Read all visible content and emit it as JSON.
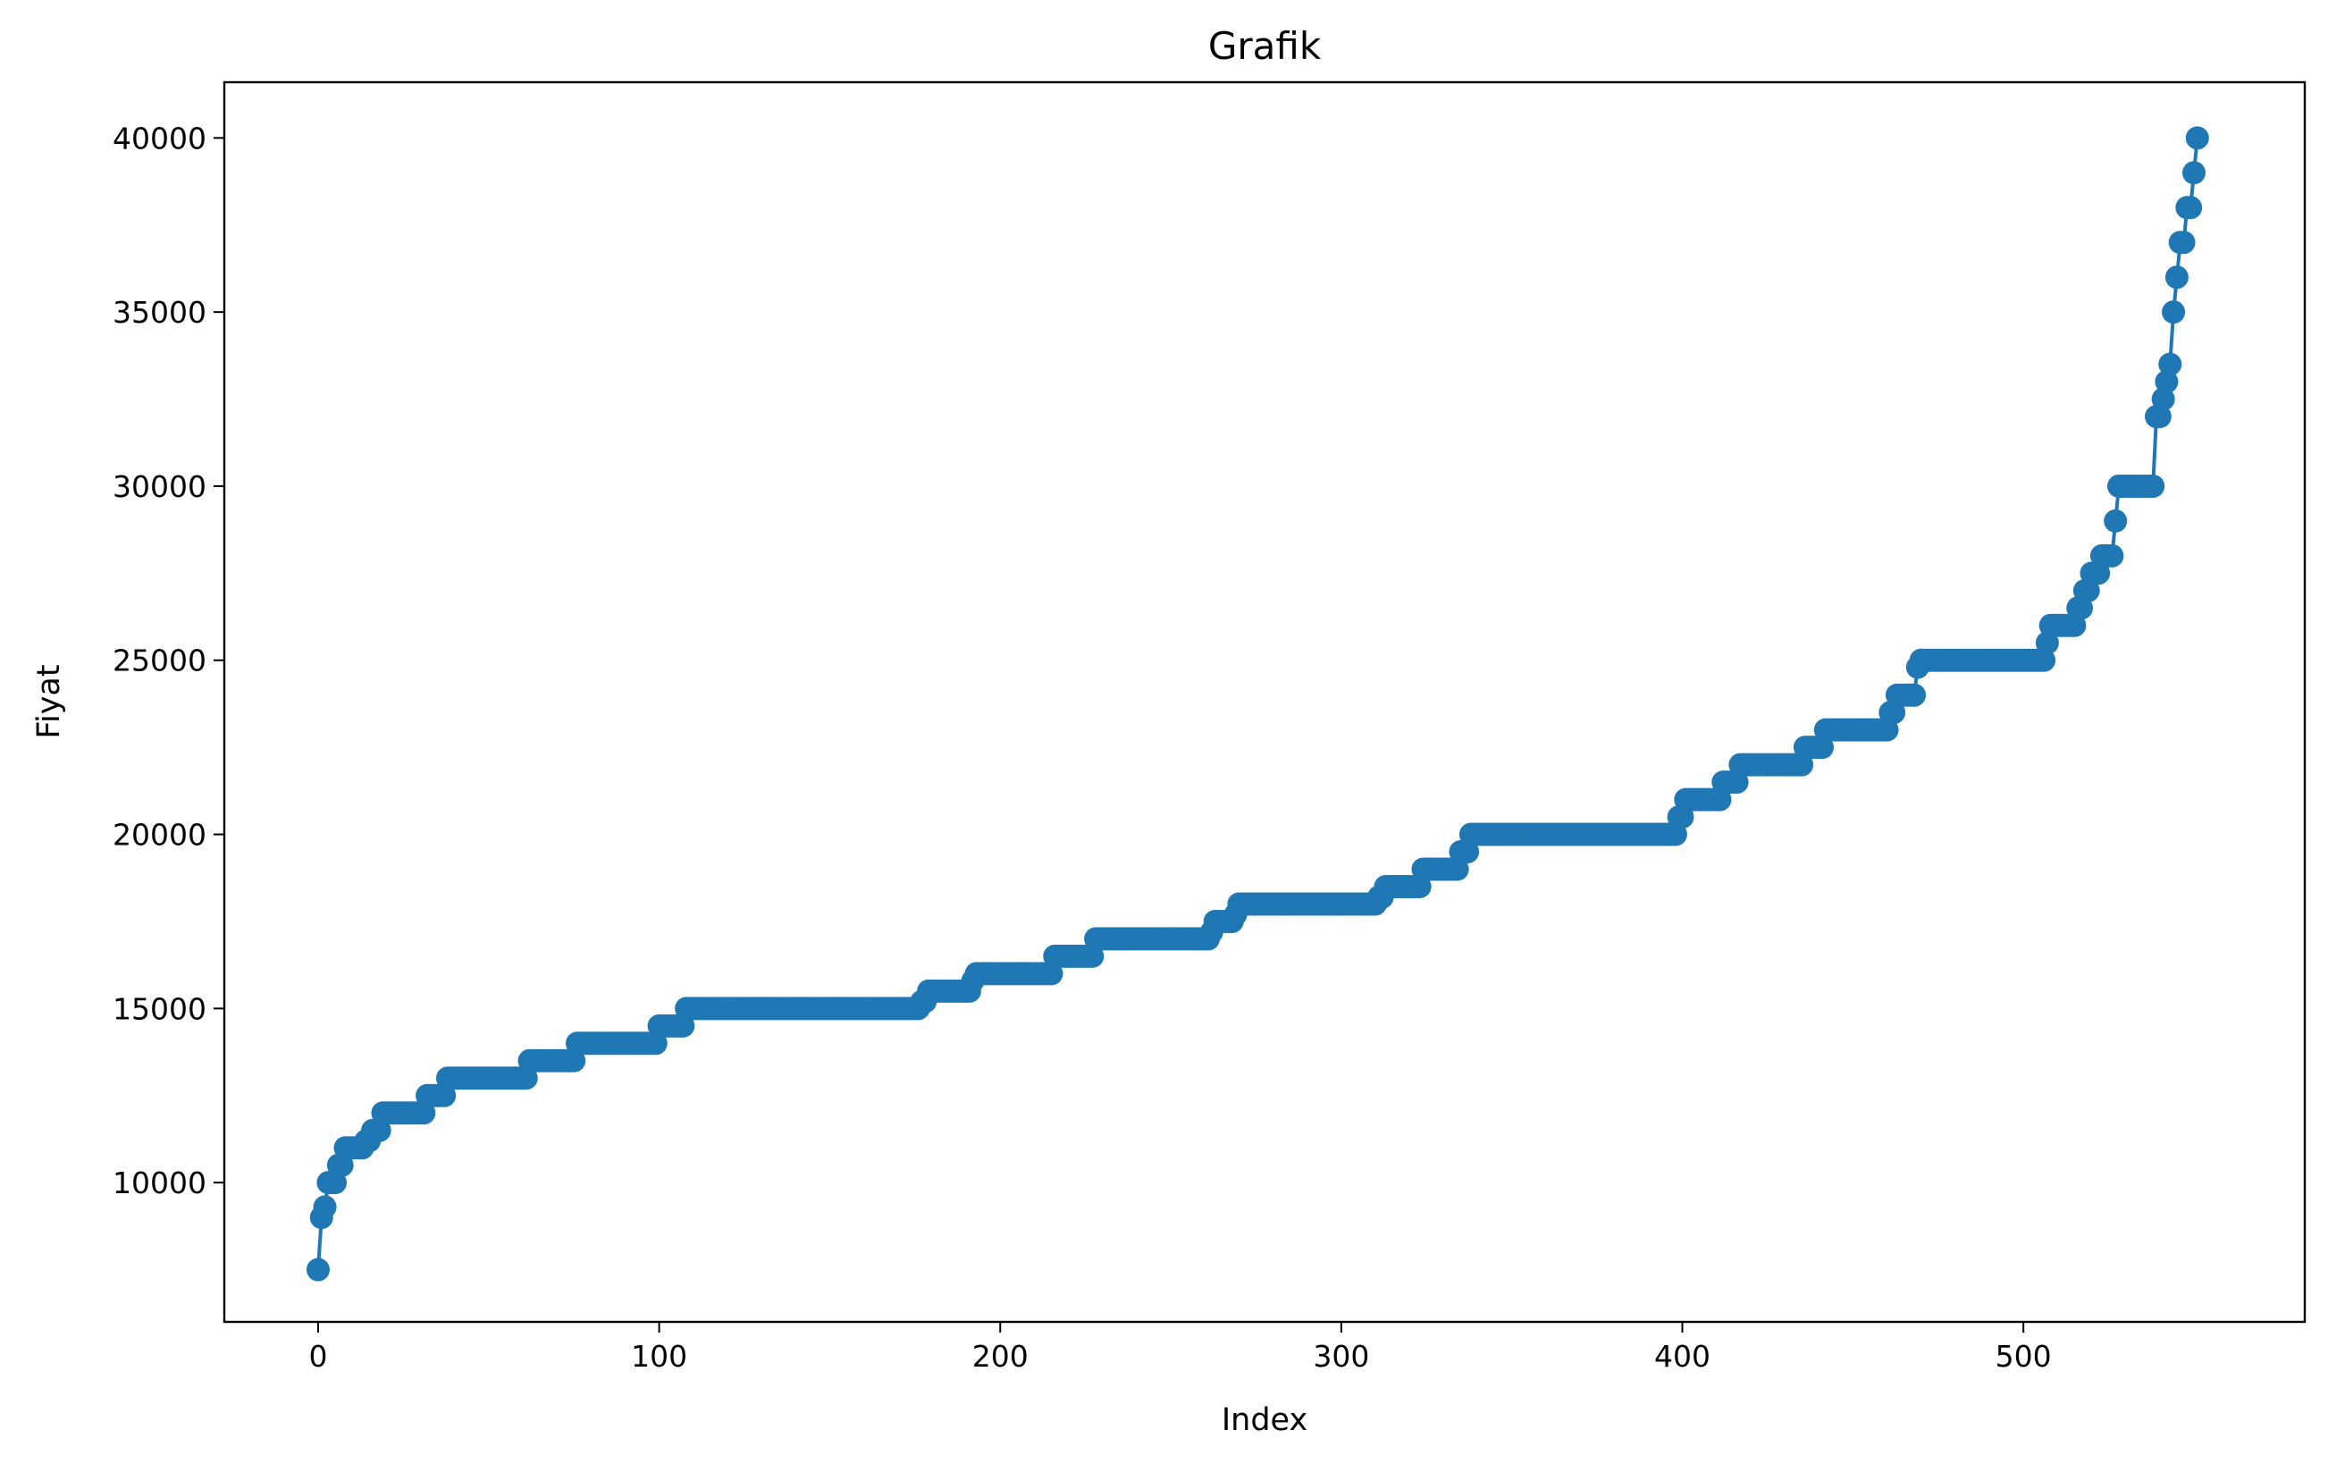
{
  "chart_data": {
    "type": "line",
    "title": "Grafik",
    "xlabel": "Index",
    "ylabel": "Fiyat",
    "xlim": [
      -27.5,
      582.5
    ],
    "ylim": [
      6000,
      41600
    ],
    "xticks": [
      0,
      100,
      200,
      300,
      400,
      500
    ],
    "yticks": [
      10000,
      15000,
      20000,
      25000,
      30000,
      35000,
      40000
    ],
    "grid": false,
    "legend": "none",
    "marker": "circle",
    "series_color": "#1f77b4",
    "series": [
      {
        "steps": [
          [
            0,
            0,
            7500
          ],
          [
            1,
            1,
            9000
          ],
          [
            2,
            2,
            9300
          ],
          [
            3,
            4,
            10000
          ],
          [
            5,
            5,
            10000
          ],
          [
            6,
            7,
            10500
          ],
          [
            8,
            13,
            11000
          ],
          [
            14,
            15,
            11200
          ],
          [
            16,
            18,
            11500
          ],
          [
            19,
            31,
            12000
          ],
          [
            32,
            37,
            12500
          ],
          [
            38,
            61,
            13000
          ],
          [
            62,
            75,
            13500
          ],
          [
            76,
            99,
            14000
          ],
          [
            100,
            107,
            14500
          ],
          [
            108,
            176,
            15000
          ],
          [
            177,
            178,
            15200
          ],
          [
            179,
            191,
            15500
          ],
          [
            192,
            192,
            15800
          ],
          [
            193,
            215,
            16000
          ],
          [
            216,
            227,
            16500
          ],
          [
            228,
            227,
            16800
          ],
          [
            228,
            261,
            17000
          ],
          [
            262,
            262,
            17200
          ],
          [
            263,
            268,
            17500
          ],
          [
            269,
            269,
            17700
          ],
          [
            270,
            310,
            18000
          ],
          [
            311,
            312,
            18200
          ],
          [
            313,
            323,
            18500
          ],
          [
            324,
            334,
            19000
          ],
          [
            335,
            337,
            19500
          ],
          [
            338,
            398,
            20000
          ],
          [
            399,
            400,
            20500
          ],
          [
            401,
            411,
            21000
          ],
          [
            412,
            416,
            21500
          ],
          [
            417,
            435,
            22000
          ],
          [
            436,
            441,
            22500
          ],
          [
            442,
            460,
            23000
          ],
          [
            461,
            462,
            23500
          ],
          [
            463,
            468,
            24000
          ],
          [
            469,
            469,
            24800
          ],
          [
            470,
            506,
            25000
          ],
          [
            507,
            507,
            25500
          ],
          [
            508,
            515,
            26000
          ],
          [
            516,
            517,
            26500
          ],
          [
            518,
            519,
            27000
          ],
          [
            520,
            522,
            27500
          ],
          [
            523,
            526,
            28000
          ],
          [
            527,
            527,
            29000
          ],
          [
            528,
            538,
            30000
          ],
          [
            539,
            540,
            32000
          ],
          [
            541,
            541,
            32500
          ],
          [
            542,
            542,
            33000
          ],
          [
            543,
            543,
            33500
          ],
          [
            544,
            544,
            35000
          ],
          [
            545,
            545,
            36000
          ],
          [
            546,
            547,
            37000
          ],
          [
            548,
            549,
            38000
          ],
          [
            550,
            550,
            39000
          ],
          [
            551,
            551,
            40000
          ]
        ]
      }
    ]
  }
}
